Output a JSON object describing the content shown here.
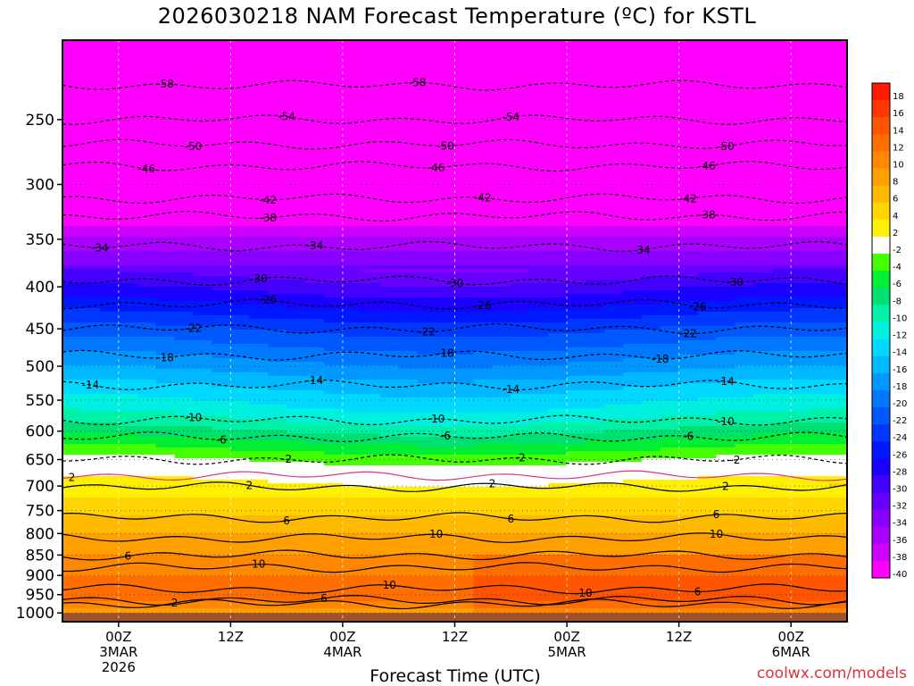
{
  "chart_data": {
    "type": "heatmap",
    "title": "2026030218 NAM Forecast Temperature (ºC) for KSTL",
    "xlabel": "Forecast Time (UTC)",
    "ylabel": "",
    "y_ticks": [
      250,
      300,
      350,
      400,
      450,
      500,
      550,
      600,
      650,
      700,
      750,
      800,
      850,
      900,
      950,
      1000
    ],
    "ylim": [
      1025,
      200
    ],
    "x_ticks": [
      {
        "hour": 6,
        "lines": [
          "00Z",
          "3MAR",
          "2026"
        ]
      },
      {
        "hour": 18,
        "lines": [
          "12Z"
        ]
      },
      {
        "hour": 30,
        "lines": [
          "00Z",
          "4MAR"
        ]
      },
      {
        "hour": 42,
        "lines": [
          "12Z"
        ]
      },
      {
        "hour": 54,
        "lines": [
          "00Z",
          "5MAR"
        ]
      },
      {
        "hour": 66,
        "lines": [
          "12Z"
        ]
      },
      {
        "hour": 78,
        "lines": [
          "00Z",
          "6MAR"
        ]
      }
    ],
    "xlim": [
      0,
      84
    ],
    "colorbar": {
      "levels": [
        18,
        16,
        14,
        12,
        10,
        8,
        6,
        4,
        2,
        -2,
        -4,
        -6,
        -8,
        -10,
        -12,
        -14,
        -16,
        -18,
        -20,
        -22,
        -24,
        -26,
        -28,
        -30,
        -32,
        -34,
        -36,
        -38,
        -40
      ],
      "colors": [
        "#ff1a00",
        "#ff3800",
        "#ff5500",
        "#ff6e00",
        "#ff8800",
        "#ffa000",
        "#ffba00",
        "#ffd400",
        "#ffef00",
        "#ffffff",
        "#44ff00",
        "#00ee33",
        "#00e070",
        "#00f0a8",
        "#00f0e0",
        "#00d8ff",
        "#00b8ff",
        "#0098ff",
        "#0078ff",
        "#0058ff",
        "#0038ff",
        "#0018ff",
        "#1a00ff",
        "#4400ff",
        "#6600ff",
        "#8800ff",
        "#aa00ff",
        "#cc00ff",
        "#ff00ff"
      ]
    },
    "contour_labels": [
      {
        "p": 227,
        "labels": [
          {
            "h": 11,
            "v": "-58"
          },
          {
            "h": 38,
            "v": "-58"
          }
        ]
      },
      {
        "p": 250,
        "labels": [
          {
            "h": 24,
            "v": "-54"
          },
          {
            "h": 48,
            "v": "-54"
          }
        ]
      },
      {
        "p": 268,
        "labels": [
          {
            "h": 14,
            "v": "-50"
          },
          {
            "h": 41,
            "v": "-50"
          },
          {
            "h": 71,
            "v": "-50"
          }
        ]
      },
      {
        "p": 285,
        "labels": [
          {
            "h": 9,
            "v": "-46"
          },
          {
            "h": 40,
            "v": "-46"
          },
          {
            "h": 69,
            "v": "-46"
          }
        ]
      },
      {
        "p": 312,
        "labels": [
          {
            "h": 22,
            "v": "-42"
          },
          {
            "h": 45,
            "v": "-42"
          },
          {
            "h": 67,
            "v": "-42"
          }
        ]
      },
      {
        "p": 328,
        "labels": [
          {
            "h": 22,
            "v": "-38"
          },
          {
            "h": 69,
            "v": "-38"
          }
        ]
      },
      {
        "p": 357,
        "labels": [
          {
            "h": 4,
            "v": "-34"
          },
          {
            "h": 27,
            "v": "-34"
          },
          {
            "h": 62,
            "v": "-34"
          }
        ]
      },
      {
        "p": 393,
        "labels": [
          {
            "h": 21,
            "v": "-30"
          },
          {
            "h": 42,
            "v": "-30"
          },
          {
            "h": 72,
            "v": "-30"
          }
        ]
      },
      {
        "p": 420,
        "labels": [
          {
            "h": 22,
            "v": "-26"
          },
          {
            "h": 45,
            "v": "-26"
          },
          {
            "h": 68,
            "v": "-26"
          }
        ]
      },
      {
        "p": 450,
        "labels": [
          {
            "h": 14,
            "v": "-22"
          },
          {
            "h": 39,
            "v": "-22"
          },
          {
            "h": 67,
            "v": "-22"
          }
        ]
      },
      {
        "p": 485,
        "labels": [
          {
            "h": 11,
            "v": "-18"
          },
          {
            "h": 41,
            "v": "-18"
          },
          {
            "h": 64,
            "v": "-18"
          }
        ]
      },
      {
        "p": 527,
        "labels": [
          {
            "h": 3,
            "v": "-14"
          },
          {
            "h": 27,
            "v": "-14"
          },
          {
            "h": 48,
            "v": "-14"
          },
          {
            "h": 71,
            "v": "-14"
          }
        ]
      },
      {
        "p": 582,
        "labels": [
          {
            "h": 14,
            "v": "-10"
          },
          {
            "h": 40,
            "v": "-10"
          },
          {
            "h": 71,
            "v": "-10"
          }
        ]
      },
      {
        "p": 610,
        "labels": [
          {
            "h": 17,
            "v": "-6"
          },
          {
            "h": 41,
            "v": "-6"
          },
          {
            "h": 67,
            "v": "-6"
          }
        ]
      },
      {
        "p": 650,
        "labels": [
          {
            "h": 24,
            "v": "-2"
          },
          {
            "h": 49,
            "v": "-2"
          },
          {
            "h": 72,
            "v": "-2"
          }
        ]
      },
      {
        "p": 680,
        "labels": [
          {
            "h": 1,
            "v": "2"
          }
        ]
      },
      {
        "p": 702,
        "labels": [
          {
            "h": 20,
            "v": "2"
          },
          {
            "h": 46,
            "v": "2"
          },
          {
            "h": 71,
            "v": "2"
          }
        ]
      },
      {
        "p": 765,
        "labels": [
          {
            "h": 24,
            "v": "6"
          },
          {
            "h": 48,
            "v": "6"
          },
          {
            "h": 70,
            "v": "6"
          }
        ]
      },
      {
        "p": 810,
        "labels": [
          {
            "h": 40,
            "v": "10"
          },
          {
            "h": 70,
            "v": "10"
          }
        ]
      },
      {
        "p": 850,
        "labels": [
          {
            "h": 7,
            "v": "6"
          }
        ]
      },
      {
        "p": 880,
        "labels": [
          {
            "h": 21,
            "v": "10"
          }
        ]
      },
      {
        "p": 935,
        "labels": [
          {
            "h": 35,
            "v": "10"
          },
          {
            "h": 56,
            "v": "10"
          },
          {
            "h": 68,
            "v": "6"
          }
        ]
      },
      {
        "p": 965,
        "labels": [
          {
            "h": 28,
            "v": "6"
          }
        ]
      },
      {
        "p": 975,
        "labels": [
          {
            "h": 12,
            "v": "2"
          }
        ]
      }
    ]
  },
  "credit": "coolwx.com/models"
}
